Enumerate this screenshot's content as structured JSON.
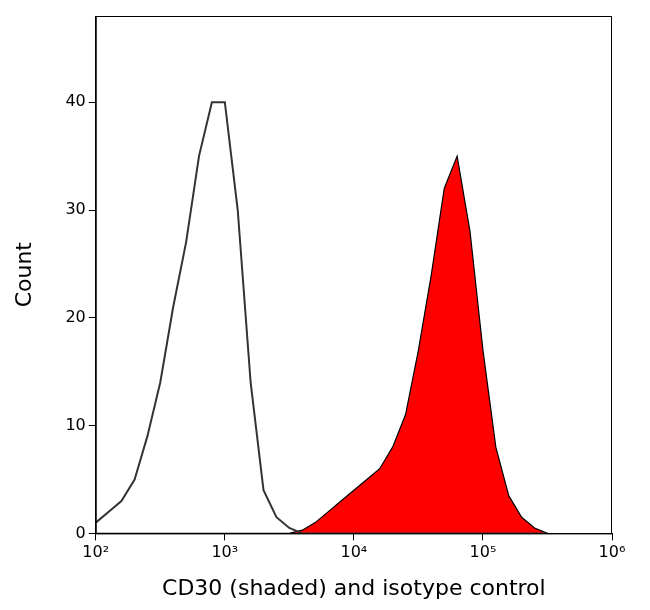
{
  "chart_data": {
    "type": "line",
    "x_label": "CD30 (shaded) and isotype control",
    "y_label": "Count",
    "log": "x",
    "grid": false,
    "xlim": [
      100,
      1000000
    ],
    "xticks": [
      {
        "value": 100,
        "label": "10²"
      },
      {
        "value": 1000,
        "label": "10³"
      },
      {
        "value": 10000,
        "label": "10⁴"
      },
      {
        "value": 100000,
        "label": "10⁵"
      },
      {
        "value": 1000000,
        "label": "10⁶"
      }
    ],
    "ylim": [
      0,
      48
    ],
    "yticks": [
      0,
      10,
      20,
      30,
      40
    ],
    "x": [
      100,
      126,
      158,
      200,
      251,
      316,
      398,
      501,
      631,
      794,
      1000,
      1259,
      1585,
      1995,
      2512,
      3162,
      3981,
      5012,
      6310,
      7943,
      10000,
      12589,
      15849,
      19953,
      25119,
      31623,
      39811,
      50119,
      63096,
      79433,
      100000,
      125893,
      158489,
      199526,
      251189,
      316228
    ],
    "series": [
      {
        "type": "line",
        "color": "#333333",
        "values": [
          1,
          2,
          3,
          5,
          9,
          14,
          21,
          27,
          35,
          40,
          40,
          30,
          14,
          4,
          1.5,
          0.5,
          0,
          0,
          0,
          0,
          0,
          0,
          0,
          0,
          0,
          0,
          0,
          0,
          0,
          0,
          0,
          0,
          0,
          0,
          0,
          0
        ]
      },
      {
        "type": "area",
        "color": "#ff0000",
        "values": [
          0,
          0,
          0,
          0,
          0,
          0,
          0,
          0,
          0,
          0,
          0,
          0,
          0,
          0,
          0,
          0,
          0.3,
          1,
          2,
          3,
          4,
          5,
          6,
          8,
          11,
          17,
          24,
          32,
          35,
          28,
          17,
          8,
          3.5,
          1.5,
          0.5,
          0
        ]
      }
    ]
  }
}
